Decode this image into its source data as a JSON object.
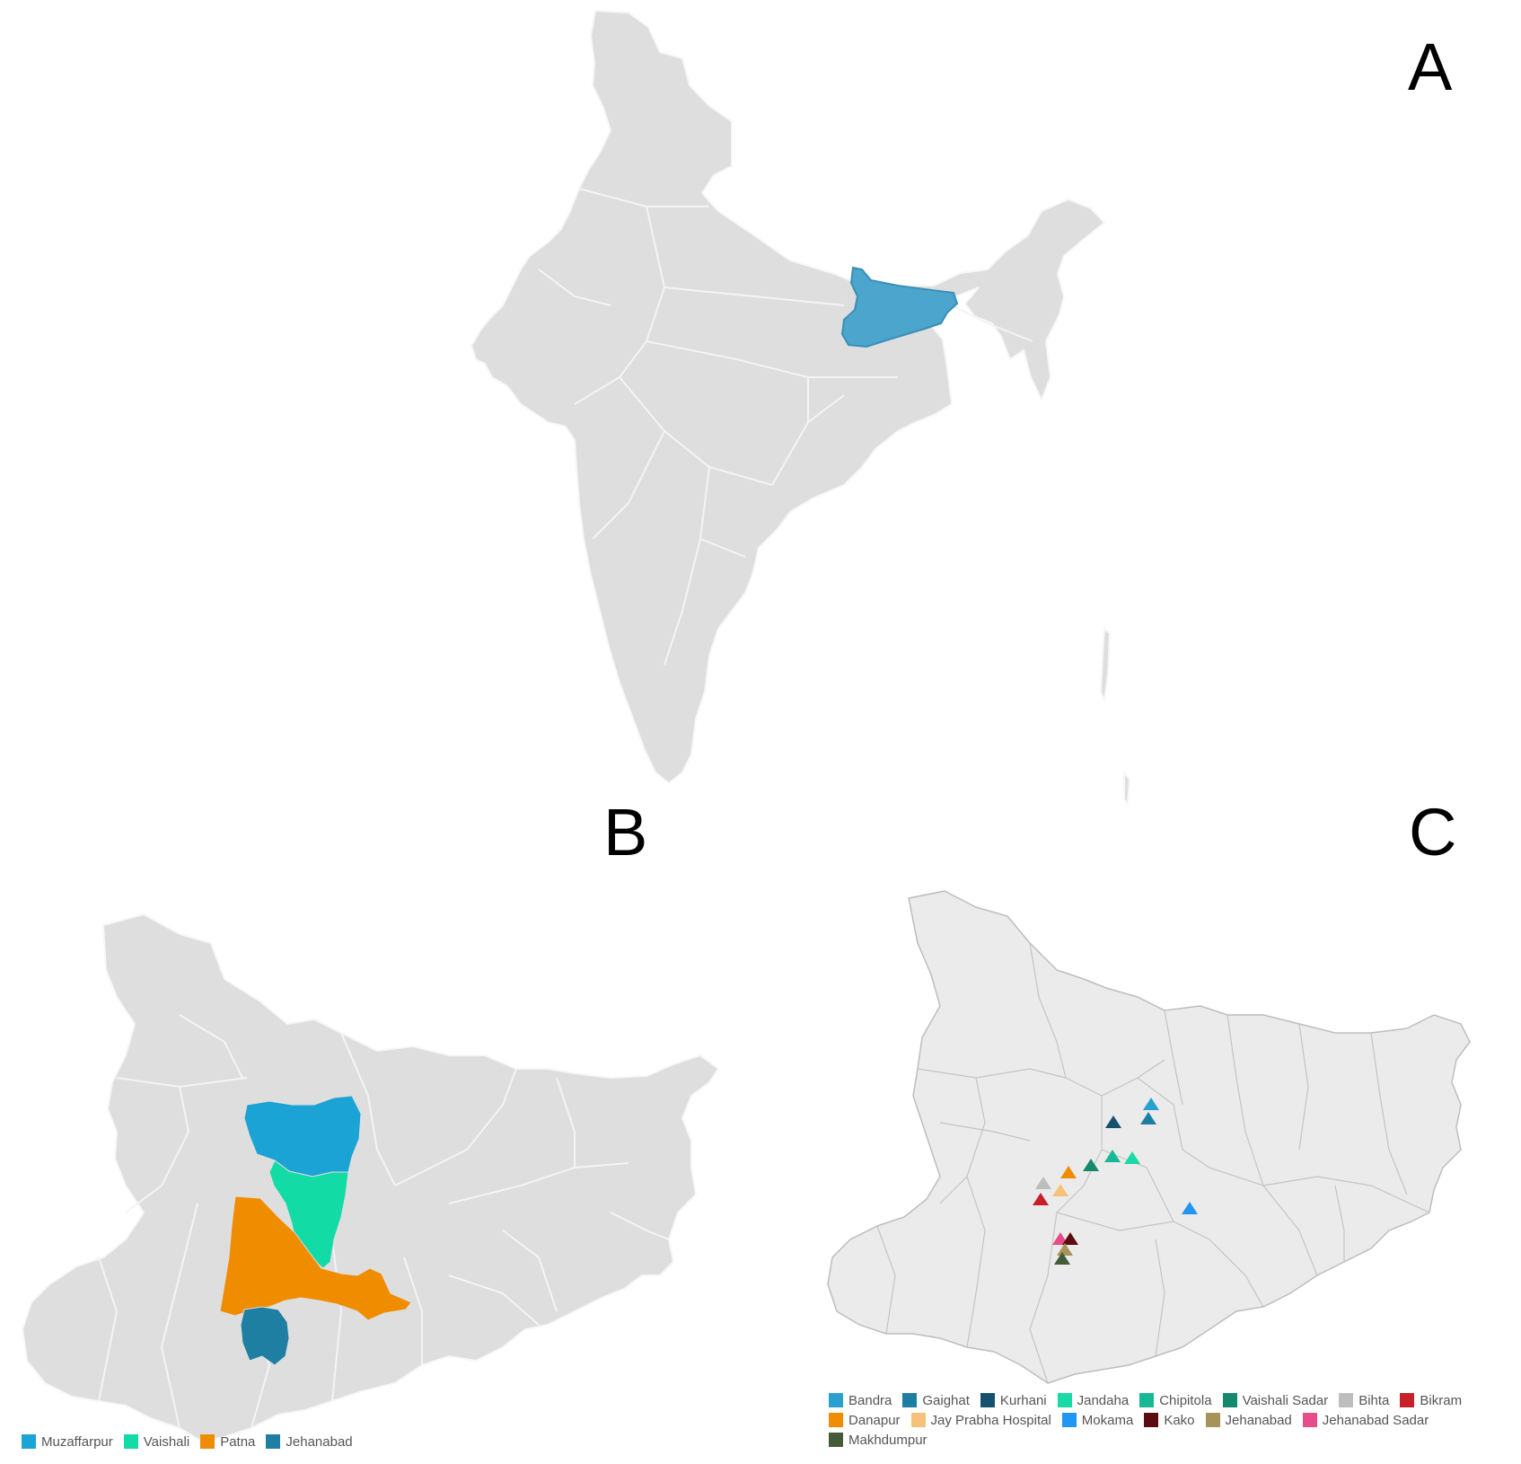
{
  "panels": {
    "a": {
      "letter": "A"
    },
    "b": {
      "letter": "B"
    },
    "c": {
      "letter": "C"
    }
  },
  "colors": {
    "land": "#dedede",
    "land_c": "#ebebeb",
    "border": "#f7f7f7",
    "border_c": "#bdbdbd",
    "bihar_highlight": "#4ba5cc"
  },
  "legend_b": [
    {
      "label": "Muzaffarpur",
      "color": "#1aa3d4"
    },
    {
      "label": "Vaishali",
      "color": "#12dba6"
    },
    {
      "label": "Patna",
      "color": "#f08c00"
    },
    {
      "label": "Jehanabad",
      "color": "#1f7fa3"
    }
  ],
  "legend_c": [
    {
      "label": "Bandra",
      "color": "#2aa0d0",
      "icon": "triangle-marker"
    },
    {
      "label": "Gaighat",
      "color": "#1d7ea4",
      "icon": "triangle-marker"
    },
    {
      "label": "Kurhani",
      "color": "#15506e",
      "icon": "triangle-marker"
    },
    {
      "label": "Jandaha",
      "color": "#19d9a6",
      "icon": "triangle-marker"
    },
    {
      "label": "Chipitola",
      "color": "#17b896",
      "icon": "triangle-marker"
    },
    {
      "label": "Vaishali Sadar",
      "color": "#138a6c",
      "icon": "triangle-marker"
    },
    {
      "label": "Bihta",
      "color": "#bdbdbd",
      "icon": "triangle-marker"
    },
    {
      "label": "Bikram",
      "color": "#c8202a",
      "icon": "triangle-marker"
    },
    {
      "label": "Danapur",
      "color": "#f08c00",
      "icon": "triangle-marker"
    },
    {
      "label": "Jay Prabha Hospital",
      "color": "#f6c27a",
      "icon": "triangle-marker"
    },
    {
      "label": "Mokama",
      "color": "#2196f3",
      "icon": "triangle-marker"
    },
    {
      "label": "Kako",
      "color": "#5a0c10",
      "icon": "triangle-marker"
    },
    {
      "label": "Jehanabad",
      "color": "#a6935a",
      "icon": "triangle-marker"
    },
    {
      "label": "Jehanabad Sadar",
      "color": "#e84c8a",
      "icon": "triangle-marker"
    },
    {
      "label": "Makhdumpur",
      "color": "#455a38",
      "icon": "triangle-marker"
    }
  ]
}
